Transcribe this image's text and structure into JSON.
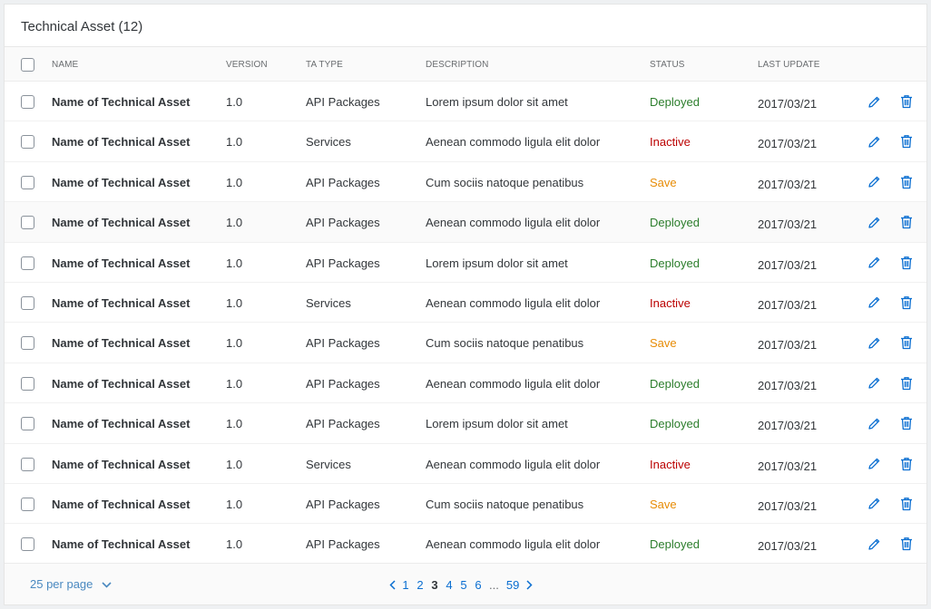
{
  "panel": {
    "title": "Technical Asset (12)"
  },
  "table": {
    "headers": {
      "name": "NAME",
      "version": "VERSION",
      "type": "TA TYPE",
      "description": "DESCRIPTION",
      "status": "STATUS",
      "last_update": "LAST UPDATE"
    },
    "rows": [
      {
        "name": "Name of Technical Asset",
        "version": "1.0",
        "type": "API Packages",
        "description": "Lorem ipsum dolor sit amet",
        "status": "Deployed",
        "date": "2017/03/21"
      },
      {
        "name": "Name of Technical Asset",
        "version": "1.0",
        "type": "Services",
        "description": "Aenean commodo ligula elit dolor",
        "status": "Inactive",
        "date": "2017/03/21"
      },
      {
        "name": "Name of Technical Asset",
        "version": "1.0",
        "type": "API Packages",
        "description": "Cum sociis natoque penatibus",
        "status": "Save",
        "date": "2017/03/21"
      },
      {
        "name": "Name of Technical Asset",
        "version": "1.0",
        "type": "API Packages",
        "description": "Aenean commodo ligula elit dolor",
        "status": "Deployed",
        "date": "2017/03/21"
      },
      {
        "name": "Name of Technical Asset",
        "version": "1.0",
        "type": "API Packages",
        "description": "Lorem ipsum dolor sit amet",
        "status": "Deployed",
        "date": "2017/03/21"
      },
      {
        "name": "Name of Technical Asset",
        "version": "1.0",
        "type": "Services",
        "description": "Aenean commodo ligula elit dolor",
        "status": "Inactive",
        "date": "2017/03/21"
      },
      {
        "name": "Name of Technical Asset",
        "version": "1.0",
        "type": "API Packages",
        "description": "Cum sociis natoque penatibus",
        "status": "Save",
        "date": "2017/03/21"
      },
      {
        "name": "Name of Technical Asset",
        "version": "1.0",
        "type": "API Packages",
        "description": "Aenean commodo ligula elit dolor",
        "status": "Deployed",
        "date": "2017/03/21"
      },
      {
        "name": "Name of Technical Asset",
        "version": "1.0",
        "type": "API Packages",
        "description": "Lorem ipsum dolor sit amet",
        "status": "Deployed",
        "date": "2017/03/21"
      },
      {
        "name": "Name of Technical Asset",
        "version": "1.0",
        "type": "Services",
        "description": "Aenean commodo ligula elit dolor",
        "status": "Inactive",
        "date": "2017/03/21"
      },
      {
        "name": "Name of Technical Asset",
        "version": "1.0",
        "type": "API Packages",
        "description": "Cum sociis natoque penatibus",
        "status": "Save",
        "date": "2017/03/21"
      },
      {
        "name": "Name of Technical Asset",
        "version": "1.0",
        "type": "API Packages",
        "description": "Aenean commodo ligula elit dolor",
        "status": "Deployed",
        "date": "2017/03/21"
      }
    ],
    "row_icons": [
      "pencil-icon",
      "trash-icon"
    ]
  },
  "status_colors": {
    "Deployed": "#2b7d2b",
    "Inactive": "#bb0000",
    "Save": "#e78c07"
  },
  "colors": {
    "accent": "#0a6ed1",
    "link": "#4a89c0"
  },
  "footer": {
    "per_page": "25 per page",
    "pages": [
      "1",
      "2",
      "3",
      "4",
      "5",
      "6",
      "...",
      "59"
    ],
    "current_page": "3"
  }
}
